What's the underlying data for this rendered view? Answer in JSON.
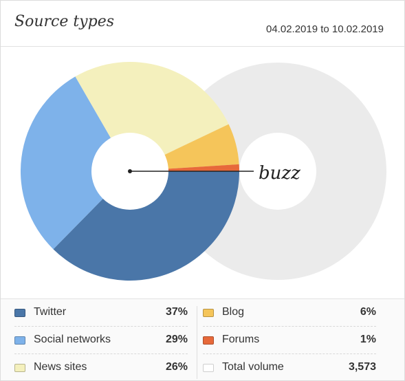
{
  "header": {
    "title": "Source types",
    "date_range": "04.02.2019 to 10.02.2019"
  },
  "chart_data": {
    "type": "pie",
    "center_label": "buzz",
    "slices": [
      {
        "label": "Twitter",
        "percent": 37,
        "color": "#4a76a8"
      },
      {
        "label": "Social networks",
        "percent": 29,
        "color": "#7eb2ea"
      },
      {
        "label": "News sites",
        "percent": 26,
        "color": "#f4f0bd"
      },
      {
        "label": "Blog",
        "percent": 6,
        "color": "#f5c55a"
      },
      {
        "label": "Forums",
        "percent": 1,
        "color": "#e7693a"
      }
    ],
    "background_ring_color": "#ebebeb"
  },
  "legend": {
    "left": [
      {
        "label": "Twitter",
        "value": "37%",
        "color": "#4a76a8"
      },
      {
        "label": "Social networks",
        "value": "29%",
        "color": "#7eb2ea"
      },
      {
        "label": "News sites",
        "value": "26%",
        "color": "#f4f0bd"
      }
    ],
    "right": [
      {
        "label": "Blog",
        "value": "6%",
        "color": "#f5c55a"
      },
      {
        "label": "Forums",
        "value": "1%",
        "color": "#e7693a"
      },
      {
        "label": "Total volume",
        "value": "3,573",
        "color": "#ffffff"
      }
    ]
  }
}
